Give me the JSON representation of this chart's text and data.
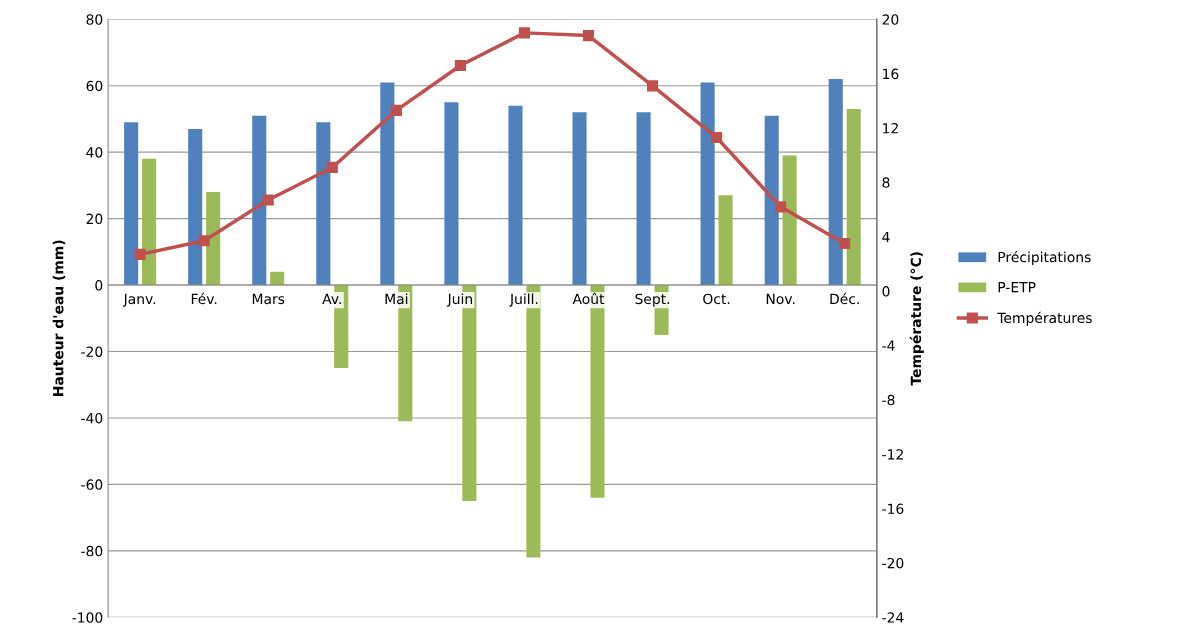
{
  "chart_data": {
    "type": "bar",
    "categories": [
      "Janv.",
      "Fév.",
      "Mars",
      "Av.",
      "Mai",
      "Juin",
      "Juill.",
      "Août",
      "Sept.",
      "Oct.",
      "Nov.",
      "Déc."
    ],
    "ylabel": "Hauteur d'eau (mm)",
    "y2label": "Température (°C)",
    "ylim": [
      -100,
      80
    ],
    "yticks": [
      -100,
      -80,
      -60,
      -40,
      -20,
      0,
      20,
      40,
      60,
      80
    ],
    "y2lim": [
      -24,
      20
    ],
    "y2ticks": [
      -24,
      -20,
      -16,
      -12,
      -8,
      -4,
      0,
      4,
      8,
      12,
      16,
      20
    ],
    "grid": "y",
    "legend": "right",
    "series": [
      {
        "name": "Précipitations",
        "color": "#4f81bd",
        "values": [
          49,
          47,
          51,
          49,
          61,
          55,
          54,
          52,
          52,
          61,
          51,
          62
        ]
      },
      {
        "name": "P-ETP",
        "color": "#9bbb59",
        "values": [
          38,
          28,
          4,
          -25,
          -41,
          -65,
          -82,
          -64,
          -15,
          27,
          39,
          53
        ]
      },
      {
        "name": "Températures",
        "type": "line",
        "axis": "y2",
        "color": "#c0504d",
        "marker": "square",
        "values": [
          2.7,
          3.7,
          6.7,
          9.1,
          13.3,
          16.6,
          19.0,
          18.8,
          15.1,
          11.3,
          6.2,
          3.5
        ]
      }
    ]
  }
}
